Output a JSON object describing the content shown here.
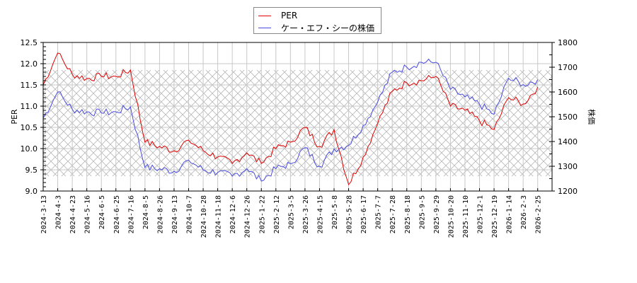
{
  "legend": {
    "items": [
      {
        "label": "PER",
        "color": "#e00000"
      },
      {
        "label": "ケー・エフ・シーの株価",
        "color": "#4a4ae0"
      }
    ]
  },
  "axes": {
    "left_title": "PER",
    "right_title": "株価",
    "left_ticks": [
      "9.0",
      "9.5",
      "10.0",
      "10.5",
      "11.0",
      "11.5",
      "12.0",
      "12.5"
    ],
    "right_ticks": [
      "1200",
      "1300",
      "1400",
      "1500",
      "1600",
      "1700",
      "1800"
    ]
  },
  "chart_data": {
    "type": "line",
    "title": "",
    "xlabel": "",
    "ylabel": "PER",
    "y2label": "株価",
    "ylim": [
      9.0,
      12.5
    ],
    "y2lim": [
      1200,
      1800
    ],
    "grid": true,
    "legend_position": "top-center",
    "shaded_band_per": [
      9.35,
      11.85
    ],
    "categories": [
      "2024-3-13",
      "2024-4-3",
      "2024-4-23",
      "2024-5-16",
      "2024-6-5",
      "2024-6-25",
      "2024-7-16",
      "2024-8-5",
      "2024-8-26",
      "2024-9-13",
      "2024-10-7",
      "2024-10-28",
      "2024-11-18",
      "2024-12-6",
      "2024-12-26",
      "2025-1-22",
      "2025-2-12",
      "2025-3-5",
      "2025-3-26",
      "2025-4-15",
      "2025-5-8",
      "2025-5-28",
      "2025-6-17",
      "2025-7-7",
      "2025-7-28",
      "2025-8-18",
      "2025-9-5",
      "2025-9-29",
      "2025-10-20",
      "2025-11-10",
      "2025-12-1",
      "2025-12-19",
      "2026-1-14",
      "2026-2-3",
      "2026-2-25"
    ],
    "series": [
      {
        "name": "PER",
        "axis": "left",
        "color": "#e00000",
        "values": [
          11.5,
          12.25,
          11.75,
          11.65,
          11.7,
          11.7,
          11.85,
          10.15,
          10.05,
          9.95,
          10.2,
          9.95,
          9.8,
          9.65,
          9.9,
          9.65,
          10.0,
          10.15,
          10.5,
          10.05,
          10.45,
          9.15,
          9.8,
          10.6,
          11.35,
          11.55,
          11.6,
          11.7,
          11.0,
          10.9,
          10.65,
          10.45,
          11.2,
          11.05,
          11.45
        ]
      },
      {
        "name": "ケー・エフ・シーの株価",
        "axis": "right",
        "color": "#4a4ae0",
        "values": [
          1495,
          1600,
          1530,
          1520,
          1515,
          1520,
          1540,
          1295,
          1290,
          1280,
          1325,
          1285,
          1275,
          1260,
          1290,
          1240,
          1290,
          1310,
          1375,
          1300,
          1370,
          1385,
          1465,
          1560,
          1680,
          1700,
          1720,
          1720,
          1610,
          1580,
          1550,
          1510,
          1655,
          1630,
          1650
        ]
      }
    ]
  }
}
